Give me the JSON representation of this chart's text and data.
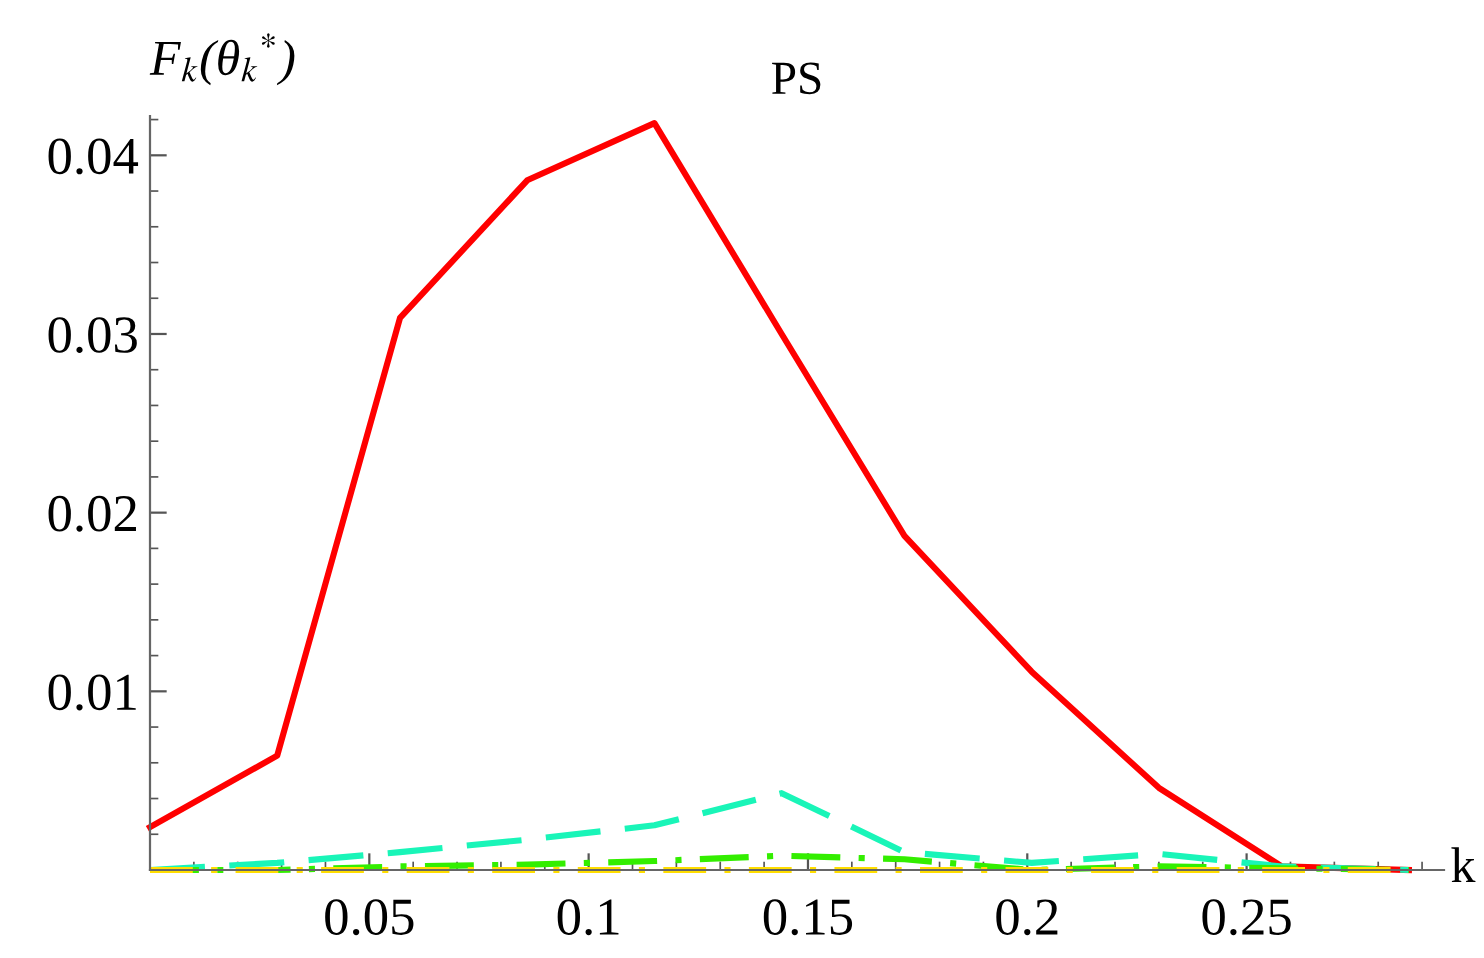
{
  "chart_data": {
    "type": "line",
    "title": "PS",
    "xlabel": "k",
    "ylabel": "F$_{k}$(θ$_{k}$$^{*}$)",
    "x": [
      0,
      0.029,
      0.057,
      0.086,
      0.115,
      0.144,
      0.172,
      0.201,
      0.23,
      0.258,
      0.287
    ],
    "series": [
      {
        "color": "#ff0000",
        "line_style": "solid",
        "values": [
          0.0024,
          0.0064,
          0.0309,
          0.0386,
          0.0418,
          0.03,
          0.0187,
          0.0111,
          0.0046,
          0.0002,
          0.0
        ]
      },
      {
        "color": "#19f5b8",
        "line_style": "dashed",
        "values": [
          0.0,
          0.0004,
          0.001,
          0.0017,
          0.0025,
          0.0043,
          0.001,
          0.0004,
          0.0009,
          0.0002,
          0.0
        ]
      },
      {
        "color": "#33ee00",
        "line_style": "dashed",
        "values": [
          0.0,
          0.0,
          0.0002,
          0.0003,
          0.0005,
          0.0008,
          0.0006,
          0.0,
          0.0002,
          0.0001,
          0.0
        ]
      },
      {
        "color": "#ffdd00",
        "line_style": "dashed",
        "values": [
          0.0,
          0.0,
          0.0,
          0.0,
          0.0,
          0.0,
          0.0,
          0.0,
          0.0,
          0.0,
          0.0
        ]
      }
    ],
    "xlim": [
      0,
      0.295
    ],
    "ylim": [
      0,
      0.0422
    ],
    "xticks": [
      0.05,
      0.1,
      0.15,
      0.2,
      0.25
    ],
    "yticks": [
      0.01,
      0.02,
      0.03,
      0.04
    ],
    "grid": false,
    "legend": false
  }
}
